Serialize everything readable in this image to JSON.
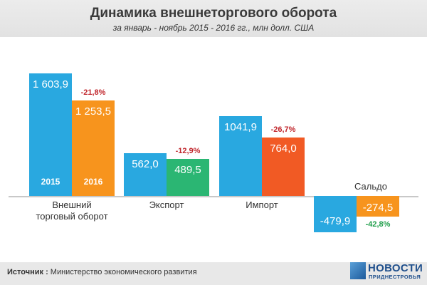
{
  "header": {
    "title": "Динамика внешнеторгового оборота",
    "subtitle": "за январь - ноябрь  2015 - 2016 гг., млн долл. США"
  },
  "chart_data": {
    "type": "bar",
    "categories": [
      "Внешний торговый оборот",
      "Экспорт",
      "Импорт",
      "Сальдо"
    ],
    "category_labels": [
      [
        "Внешний",
        "торговый оборот"
      ],
      [
        "Экспорт"
      ],
      [
        "Импорт"
      ],
      [
        "Сальдо"
      ]
    ],
    "series": [
      {
        "name": "2015",
        "values": [
          1603.9,
          562.0,
          1041.9,
          -479.9
        ],
        "labels": [
          "1 603,9",
          "562,0",
          "1041,9",
          "-479,9"
        ]
      },
      {
        "name": "2016",
        "values": [
          1253.5,
          489.5,
          764.0,
          -274.5
        ],
        "labels": [
          "1 253,5",
          "489,5",
          "764,0",
          "-274,5"
        ]
      }
    ],
    "changes": [
      "-21,8%",
      "-12,9%",
      "-26,7%",
      "-42,8%"
    ],
    "year_labels": [
      "2015",
      "2016"
    ],
    "colors": {
      "series2015": "#29a8e0",
      "trade2016": "#f7941d",
      "export2016": "#2bb673",
      "import2016": "#f15a24",
      "balance2016": "#f7941d",
      "change_negative": "#c1272d",
      "change_positive": "#1f9e4a"
    },
    "ylim": [
      -600,
      1800
    ]
  },
  "footer": {
    "source_label": "Источник :",
    "source_text": " Министерство экономического развития"
  },
  "logo": {
    "main": "НОВОСТИ",
    "sub": "ПРИДНЕСТРОВЬЯ"
  }
}
